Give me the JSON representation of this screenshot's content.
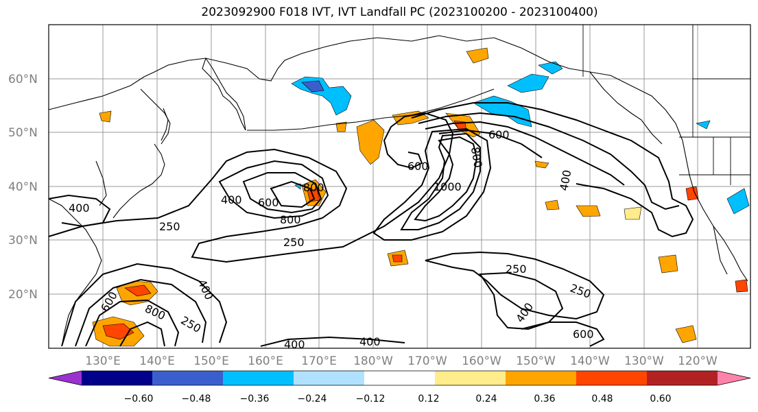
{
  "title": "2023092900 F018 IVT, IVT Landfall PC (2023100200 - 2023100400)",
  "lat_labels": [
    "60°N",
    "50°N",
    "40°N",
    "30°N",
    "20°N"
  ],
  "lon_labels": [
    "130°E",
    "140°E",
    "150°E",
    "160°E",
    "170°E",
    "180°W",
    "170°W",
    "160°W",
    "150°W",
    "140°W",
    "130°W",
    "120°W"
  ],
  "contour_labels": [
    "400",
    "250",
    "400",
    "600",
    "800",
    "800",
    "250",
    "600",
    "1000",
    "800",
    "600",
    "400",
    "250",
    "250",
    "400",
    "600",
    "400",
    "400",
    "600",
    "800",
    "250",
    "400"
  ],
  "colorbar": {
    "colors": [
      "#9a32cd",
      "#00008b",
      "#3a5fcd",
      "#00bfff",
      "#b0e2ff",
      "#ffffff",
      "#ffec8b",
      "#ffa500",
      "#ff4500",
      "#b22222",
      "#ff82ab"
    ],
    "tick_labels": [
      "−0.60",
      "−0.48",
      "−0.36",
      "−0.24",
      "−0.12",
      "0.12",
      "0.24",
      "0.36",
      "0.48",
      "0.60"
    ]
  }
}
